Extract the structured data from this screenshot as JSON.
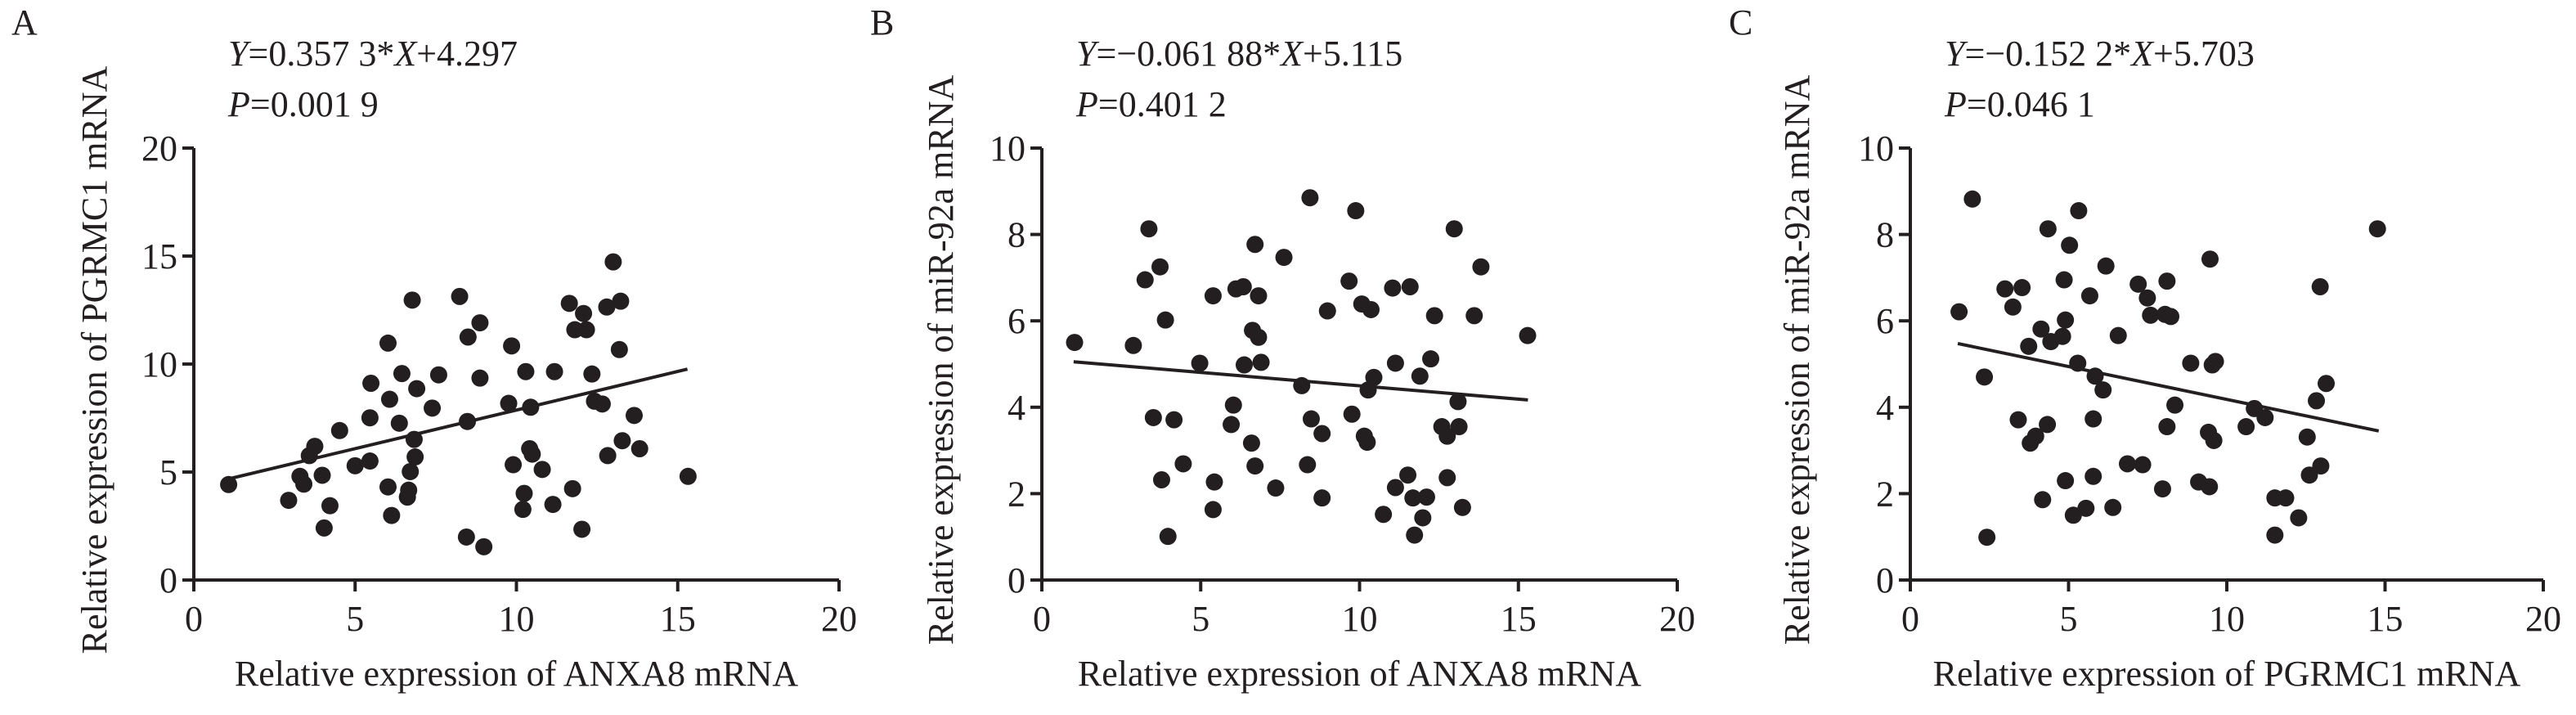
{
  "chart_data": [
    {
      "type": "scatter",
      "panel_label": "A",
      "equation": "Y=0.357 3*X+4.297",
      "p_value": "P=0.001 9",
      "fit": {
        "slope": 0.3573,
        "intercept": 4.297,
        "x_range": [
          1.1,
          15.3
        ]
      },
      "xlabel": "Relative expression of ANXA8 mRNA",
      "ylabel": "Relative expression of PGRMC1 mRNA",
      "xlim": [
        0,
        20
      ],
      "ylim": [
        0,
        20
      ],
      "xticks": [
        "0",
        "5",
        "10",
        "15",
        "20"
      ],
      "yticks": [
        "0",
        "5",
        "10",
        "15",
        "20"
      ],
      "grid": false,
      "points": [
        [
          1.08,
          4.42
        ],
        [
          2.94,
          3.69
        ],
        [
          3.29,
          4.8
        ],
        [
          3.41,
          4.44
        ],
        [
          3.58,
          5.76
        ],
        [
          3.75,
          6.19
        ],
        [
          3.98,
          4.85
        ],
        [
          4.04,
          2.41
        ],
        [
          4.22,
          3.44
        ],
        [
          4.52,
          6.92
        ],
        [
          5.0,
          5.29
        ],
        [
          5.46,
          5.51
        ],
        [
          5.46,
          7.51
        ],
        [
          5.49,
          9.11
        ],
        [
          6.02,
          10.97
        ],
        [
          6.07,
          8.37
        ],
        [
          6.02,
          4.31
        ],
        [
          6.13,
          2.99
        ],
        [
          6.37,
          7.26
        ],
        [
          6.45,
          9.56
        ],
        [
          6.62,
          3.84
        ],
        [
          6.66,
          4.16
        ],
        [
          6.71,
          5.02
        ],
        [
          6.77,
          12.96
        ],
        [
          6.83,
          6.51
        ],
        [
          6.86,
          5.7
        ],
        [
          6.91,
          8.86
        ],
        [
          7.39,
          7.96
        ],
        [
          7.59,
          9.5
        ],
        [
          8.24,
          13.13
        ],
        [
          8.45,
          1.99
        ],
        [
          8.48,
          7.34
        ],
        [
          8.5,
          11.25
        ],
        [
          8.87,
          11.91
        ],
        [
          8.87,
          9.35
        ],
        [
          8.99,
          1.54
        ],
        [
          9.76,
          8.18
        ],
        [
          9.85,
          10.84
        ],
        [
          9.9,
          5.34
        ],
        [
          10.24,
          4.01
        ],
        [
          10.2,
          3.27
        ],
        [
          10.29,
          9.65
        ],
        [
          10.41,
          6.08
        ],
        [
          10.44,
          8.0
        ],
        [
          10.49,
          5.83
        ],
        [
          10.8,
          5.12
        ],
        [
          11.13,
          3.5
        ],
        [
          11.18,
          9.65
        ],
        [
          11.64,
          12.81
        ],
        [
          11.74,
          4.23
        ],
        [
          11.81,
          11.59
        ],
        [
          12.03,
          2.35
        ],
        [
          12.08,
          12.34
        ],
        [
          12.17,
          11.59
        ],
        [
          12.34,
          9.54
        ],
        [
          12.42,
          8.28
        ],
        [
          12.66,
          8.15
        ],
        [
          12.8,
          12.64
        ],
        [
          12.83,
          5.76
        ],
        [
          13.0,
          14.73
        ],
        [
          13.23,
          12.91
        ],
        [
          13.19,
          10.67
        ],
        [
          13.28,
          6.45
        ],
        [
          13.65,
          7.62
        ],
        [
          13.82,
          6.08
        ],
        [
          15.32,
          4.8
        ]
      ]
    },
    {
      "type": "scatter",
      "panel_label": "B",
      "equation": "Y=−0.061 88*X+5.115",
      "p_value": "P=0.401 2",
      "fit": {
        "slope": -0.06188,
        "intercept": 5.115,
        "x_range": [
          1.0,
          15.3
        ]
      },
      "xlabel": "Relative expression of ANXA8 mRNA",
      "ylabel": "Relative expression of miR-92a mRNA",
      "xlim": [
        0,
        20
      ],
      "ylim": [
        0,
        10
      ],
      "xticks": [
        "0",
        "5",
        "10",
        "15",
        "20"
      ],
      "yticks": [
        "0",
        "2",
        "4",
        "6",
        "8",
        "10"
      ],
      "grid": false,
      "points": [
        [
          1.03,
          5.5
        ],
        [
          2.88,
          5.43
        ],
        [
          3.37,
          8.13
        ],
        [
          3.25,
          6.95
        ],
        [
          3.51,
          3.76
        ],
        [
          3.72,
          7.25
        ],
        [
          3.77,
          2.32
        ],
        [
          3.89,
          6.02
        ],
        [
          4.16,
          3.71
        ],
        [
          3.97,
          1.01
        ],
        [
          4.45,
          2.69
        ],
        [
          4.97,
          5.02
        ],
        [
          5.39,
          6.58
        ],
        [
          5.43,
          2.27
        ],
        [
          5.39,
          1.63
        ],
        [
          6.03,
          4.05
        ],
        [
          5.96,
          3.6
        ],
        [
          6.11,
          6.74
        ],
        [
          6.34,
          6.79
        ],
        [
          6.37,
          4.98
        ],
        [
          6.6,
          3.17
        ],
        [
          6.71,
          7.77
        ],
        [
          6.63,
          5.78
        ],
        [
          6.82,
          5.62
        ],
        [
          6.82,
          6.58
        ],
        [
          6.9,
          5.04
        ],
        [
          6.71,
          2.64
        ],
        [
          7.36,
          2.13
        ],
        [
          7.62,
          7.47
        ],
        [
          8.18,
          4.5
        ],
        [
          8.36,
          2.67
        ],
        [
          8.44,
          8.85
        ],
        [
          8.48,
          3.73
        ],
        [
          8.82,
          3.39
        ],
        [
          8.82,
          1.9
        ],
        [
          8.99,
          6.23
        ],
        [
          9.67,
          6.92
        ],
        [
          9.76,
          3.84
        ],
        [
          9.88,
          8.55
        ],
        [
          10.07,
          6.39
        ],
        [
          10.15,
          3.33
        ],
        [
          10.24,
          3.19
        ],
        [
          10.36,
          6.26
        ],
        [
          10.27,
          4.4
        ],
        [
          10.45,
          4.69
        ],
        [
          10.75,
          1.52
        ],
        [
          11.04,
          6.76
        ],
        [
          11.13,
          2.14
        ],
        [
          11.13,
          5.02
        ],
        [
          11.52,
          2.43
        ],
        [
          11.59,
          6.79
        ],
        [
          11.68,
          1.9
        ],
        [
          11.73,
          1.04
        ],
        [
          11.9,
          4.72
        ],
        [
          11.99,
          1.44
        ],
        [
          12.11,
          1.92
        ],
        [
          12.24,
          5.12
        ],
        [
          12.36,
          6.12
        ],
        [
          12.59,
          3.55
        ],
        [
          12.76,
          3.33
        ],
        [
          12.76,
          2.37
        ],
        [
          12.98,
          8.13
        ],
        [
          13.1,
          4.13
        ],
        [
          13.13,
          3.55
        ],
        [
          13.24,
          1.68
        ],
        [
          13.61,
          6.12
        ],
        [
          13.82,
          7.25
        ],
        [
          15.29,
          5.66
        ]
      ]
    },
    {
      "type": "scatter",
      "panel_label": "C",
      "equation": "Y=−0.152 2*X+5.703",
      "p_value": "P=0.046 1",
      "fit": {
        "slope": -0.1522,
        "intercept": 5.703,
        "x_range": [
          1.5,
          14.8
        ]
      },
      "xlabel": "Relative expression of PGRMC1 mRNA",
      "ylabel": "Relative expression of miR-92a mRNA",
      "xlim": [
        0,
        20
      ],
      "ylim": [
        0,
        10
      ],
      "xticks": [
        "0",
        "5",
        "10",
        "15",
        "20"
      ],
      "yticks": [
        "0",
        "2",
        "4",
        "6",
        "8",
        "10"
      ],
      "grid": false,
      "points": [
        [
          1.54,
          6.21
        ],
        [
          1.96,
          8.82
        ],
        [
          2.34,
          4.7
        ],
        [
          2.42,
          0.99
        ],
        [
          2.99,
          6.74
        ],
        [
          3.24,
          6.32
        ],
        [
          3.41,
          3.71
        ],
        [
          3.53,
          6.77
        ],
        [
          3.74,
          5.41
        ],
        [
          3.79,
          3.17
        ],
        [
          3.96,
          3.33
        ],
        [
          4.13,
          5.81
        ],
        [
          4.18,
          1.86
        ],
        [
          4.33,
          3.6
        ],
        [
          4.35,
          8.13
        ],
        [
          4.44,
          5.52
        ],
        [
          4.81,
          5.64
        ],
        [
          4.9,
          6.02
        ],
        [
          4.9,
          2.3
        ],
        [
          4.86,
          6.95
        ],
        [
          5.03,
          7.75
        ],
        [
          5.15,
          1.5
        ],
        [
          5.29,
          5.02
        ],
        [
          5.32,
          8.55
        ],
        [
          5.55,
          1.66
        ],
        [
          5.67,
          6.58
        ],
        [
          5.78,
          3.73
        ],
        [
          5.78,
          2.4
        ],
        [
          5.84,
          4.72
        ],
        [
          6.09,
          4.4
        ],
        [
          6.18,
          7.27
        ],
        [
          6.4,
          1.68
        ],
        [
          6.57,
          5.66
        ],
        [
          6.86,
          2.69
        ],
        [
          7.2,
          6.85
        ],
        [
          7.34,
          2.67
        ],
        [
          7.49,
          6.53
        ],
        [
          7.59,
          6.13
        ],
        [
          7.97,
          2.11
        ],
        [
          8.05,
          6.15
        ],
        [
          8.11,
          6.92
        ],
        [
          8.11,
          3.55
        ],
        [
          8.23,
          6.1
        ],
        [
          8.36,
          4.05
        ],
        [
          8.86,
          5.02
        ],
        [
          9.11,
          2.27
        ],
        [
          9.45,
          2.16
        ],
        [
          9.47,
          7.43
        ],
        [
          9.42,
          3.42
        ],
        [
          9.54,
          4.98
        ],
        [
          9.59,
          3.23
        ],
        [
          9.64,
          5.06
        ],
        [
          10.61,
          3.55
        ],
        [
          10.87,
          3.97
        ],
        [
          11.21,
          3.76
        ],
        [
          11.52,
          1.9
        ],
        [
          11.52,
          1.04
        ],
        [
          11.86,
          1.9
        ],
        [
          12.27,
          1.44
        ],
        [
          12.54,
          3.31
        ],
        [
          12.61,
          2.43
        ],
        [
          12.83,
          4.15
        ],
        [
          12.97,
          2.64
        ],
        [
          12.95,
          6.79
        ],
        [
          13.14,
          4.55
        ],
        [
          14.76,
          8.13
        ]
      ]
    }
  ]
}
